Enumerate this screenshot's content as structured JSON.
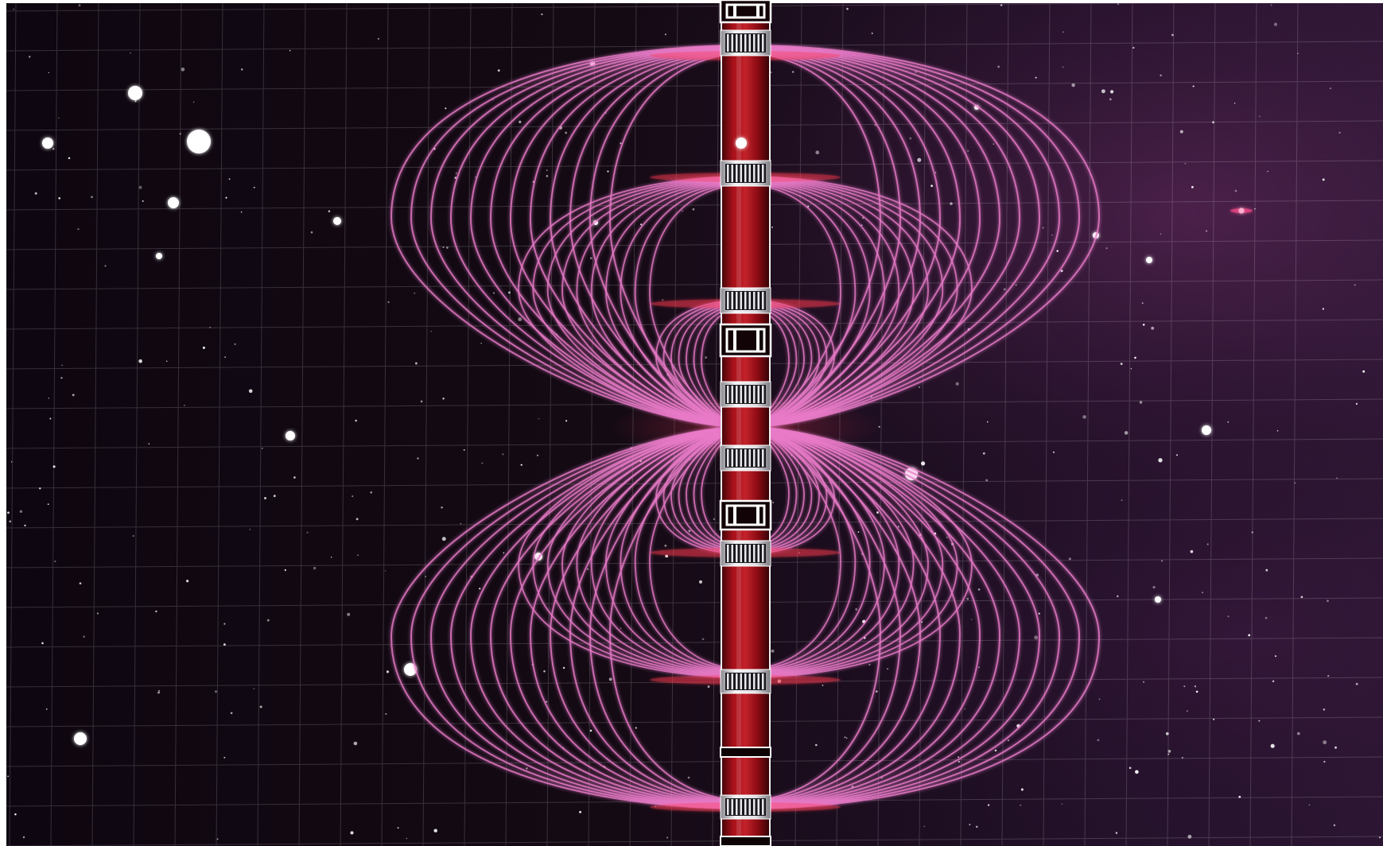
{
  "image": {
    "subject": "magnetic-field-lines-around-coil",
    "colors": {
      "space_dark": "#0c0610",
      "space_mid": "#1d1020",
      "nebula": "#5a2a55",
      "field_line": "#e87ac8",
      "field_glow": "#ff3a50",
      "rod_red": "#b30e18",
      "rod_dark": "#2a0306",
      "band_metal": "#e8e8ec",
      "grid_line": "#ffffff",
      "star": "#ffffff"
    },
    "field": {
      "outer_loops": 12,
      "middle_loops": 10,
      "inner_loops": 7
    }
  }
}
